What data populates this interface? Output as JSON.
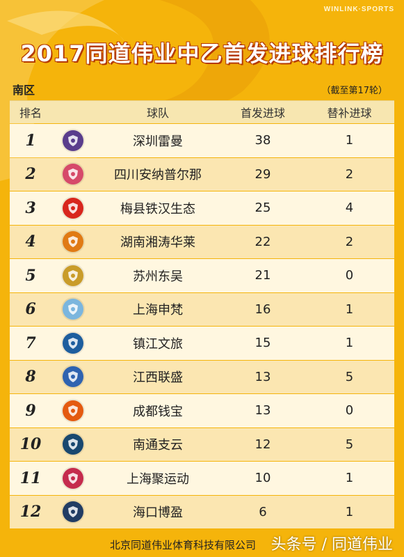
{
  "brand": "WINLINK·SPORTS",
  "title": "2017同道伟业中乙首发进球排行榜",
  "region": "南区",
  "as_of": "（截至第17轮）",
  "columns": {
    "rank": "排名",
    "team": "球队",
    "starting_goals": "首发进球",
    "sub_goals": "替补进球"
  },
  "rows": [
    {
      "rank": "1",
      "team": "深圳雷曼",
      "starting_goals": "38",
      "sub_goals": "1",
      "badge_color": "#5a3d8c"
    },
    {
      "rank": "2",
      "team": "四川安纳普尔那",
      "starting_goals": "29",
      "sub_goals": "2",
      "badge_color": "#d64a6a"
    },
    {
      "rank": "3",
      "team": "梅县铁汉生态",
      "starting_goals": "25",
      "sub_goals": "4",
      "badge_color": "#d8261d"
    },
    {
      "rank": "4",
      "team": "湖南湘涛华莱",
      "starting_goals": "22",
      "sub_goals": "2",
      "badge_color": "#e07a14"
    },
    {
      "rank": "5",
      "team": "苏州东吴",
      "starting_goals": "21",
      "sub_goals": "0",
      "badge_color": "#c99c2a"
    },
    {
      "rank": "6",
      "team": "上海申梵",
      "starting_goals": "16",
      "sub_goals": "1",
      "badge_color": "#7bb6de"
    },
    {
      "rank": "7",
      "team": "镇江文旅",
      "starting_goals": "15",
      "sub_goals": "1",
      "badge_color": "#1e5e9e"
    },
    {
      "rank": "8",
      "team": "江西联盛",
      "starting_goals": "13",
      "sub_goals": "5",
      "badge_color": "#2f63b0"
    },
    {
      "rank": "9",
      "team": "成都钱宝",
      "starting_goals": "13",
      "sub_goals": "0",
      "badge_color": "#e45a10"
    },
    {
      "rank": "10",
      "team": "南通支云",
      "starting_goals": "12",
      "sub_goals": "5",
      "badge_color": "#19486f"
    },
    {
      "rank": "11",
      "team": "上海聚运动",
      "starting_goals": "10",
      "sub_goals": "1",
      "badge_color": "#c52b4d"
    },
    {
      "rank": "12",
      "team": "海口博盈",
      "starting_goals": "6",
      "sub_goals": "1",
      "badge_color": "#213c63"
    }
  ],
  "footer": {
    "organization": "北京同道伟业体育科技有限公司",
    "watermark": "头条号 / 同道伟业"
  }
}
